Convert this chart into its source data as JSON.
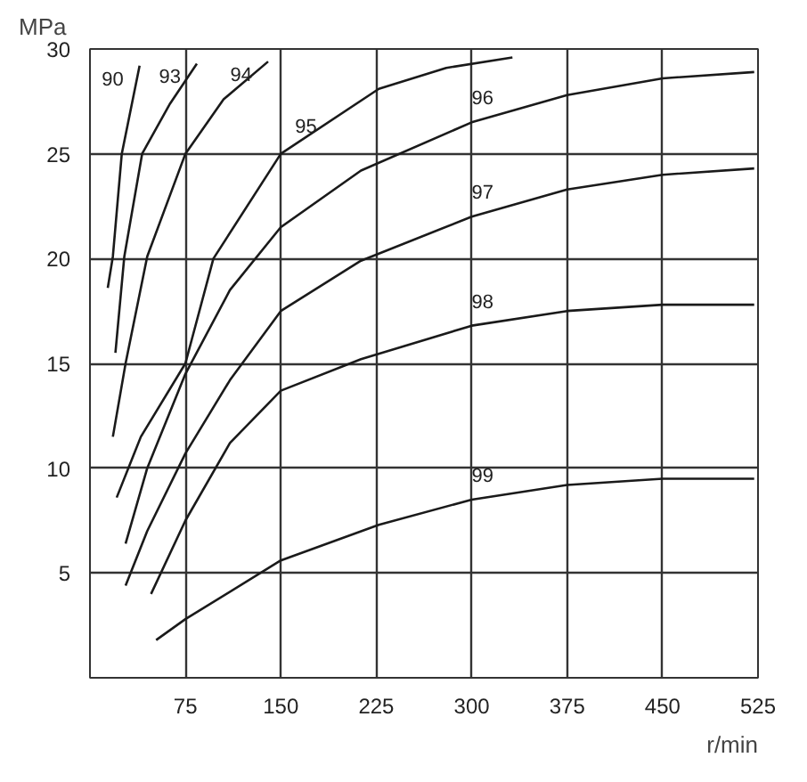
{
  "chart_data": {
    "type": "line",
    "xlabel": "r/min",
    "ylabel": "MPa",
    "xlim": [
      0,
      525
    ],
    "ylim": [
      0,
      30
    ],
    "xticks": [
      75,
      150,
      225,
      300,
      375,
      450,
      525
    ],
    "yticks": [
      5,
      10,
      15,
      20,
      25,
      30
    ],
    "grid": true,
    "marker": "none",
    "line_style": "solid",
    "series": [
      {
        "name": "90",
        "color": "#1a1a1a",
        "x": [
          14,
          18,
          25,
          32,
          39
        ],
        "values": [
          18.6,
          20.1,
          25,
          27.1,
          29.2
        ]
      },
      {
        "name": "93",
        "color": "#1a1a1a",
        "x": [
          20,
          27,
          41,
          63,
          84
        ],
        "values": [
          15.5,
          20.1,
          25,
          27.4,
          29.3
        ]
      },
      {
        "name": "94",
        "color": "#1a1a1a",
        "x": [
          18,
          28,
          45,
          75,
          105,
          140
        ],
        "values": [
          11.5,
          15,
          20.1,
          25,
          27.6,
          29.4
        ]
      },
      {
        "name": "95",
        "color": "#1a1a1a",
        "x": [
          21,
          40,
          75,
          97,
          150,
          227,
          280,
          332
        ],
        "values": [
          8.6,
          11.5,
          15,
          20,
          25,
          28.1,
          29.1,
          29.6
        ]
      },
      {
        "name": "96",
        "color": "#1a1a1a",
        "x": [
          28,
          45,
          75,
          110,
          150,
          213,
          300,
          375,
          450,
          522
        ],
        "values": [
          6.4,
          10,
          14.5,
          18.5,
          21.5,
          24.2,
          26.5,
          27.8,
          28.6,
          28.9
        ]
      },
      {
        "name": "97",
        "color": "#1a1a1a",
        "x": [
          28,
          45,
          75,
          110,
          150,
          213,
          300,
          375,
          450,
          522
        ],
        "values": [
          4.4,
          7,
          10.7,
          14.2,
          17.5,
          19.9,
          22,
          23.3,
          24,
          24.3
        ]
      },
      {
        "name": "98",
        "color": "#1a1a1a",
        "x": [
          48,
          75,
          110,
          150,
          213,
          300,
          375,
          450,
          522
        ],
        "values": [
          4,
          7.5,
          11.2,
          13.7,
          15.2,
          16.8,
          17.5,
          17.8,
          17.8
        ]
      },
      {
        "name": "99",
        "color": "#1a1a1a",
        "x": [
          52,
          75,
          150,
          227,
          300,
          375,
          450,
          522
        ],
        "values": [
          1.8,
          2.8,
          5.6,
          7.3,
          8.5,
          9.2,
          9.5,
          9.5
        ]
      }
    ]
  }
}
